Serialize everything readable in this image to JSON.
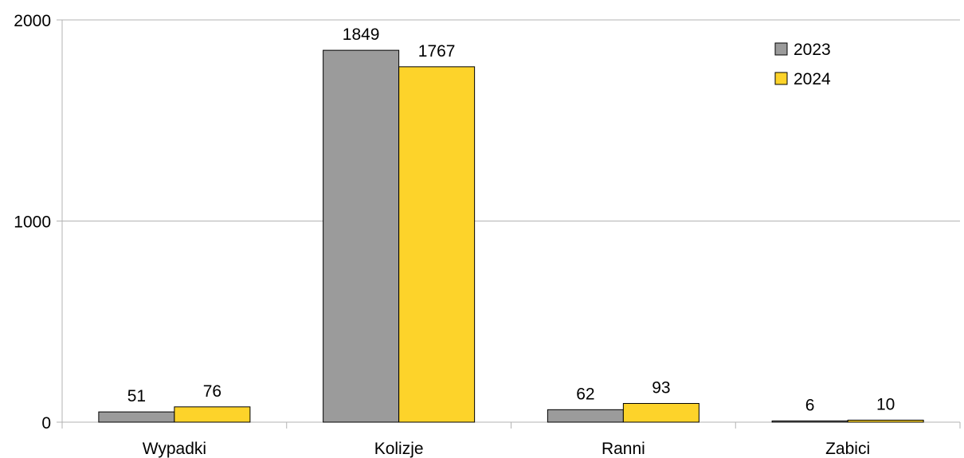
{
  "chart_data": {
    "type": "bar",
    "categories": [
      "Wypadki",
      "Kolizje",
      "Ranni",
      "Zabici"
    ],
    "series": [
      {
        "name": "2023",
        "values": [
          51,
          1849,
          62,
          6
        ],
        "color": "#9b9b9b"
      },
      {
        "name": "2024",
        "values": [
          76,
          1767,
          93,
          10
        ],
        "color": "#fdd32a"
      }
    ],
    "yticks": [
      "0",
      "1000",
      "2000"
    ],
    "ylim": [
      0,
      2000
    ],
    "grid": true,
    "legend_position": "top-right",
    "xlabel": "",
    "ylabel": "",
    "title": ""
  }
}
